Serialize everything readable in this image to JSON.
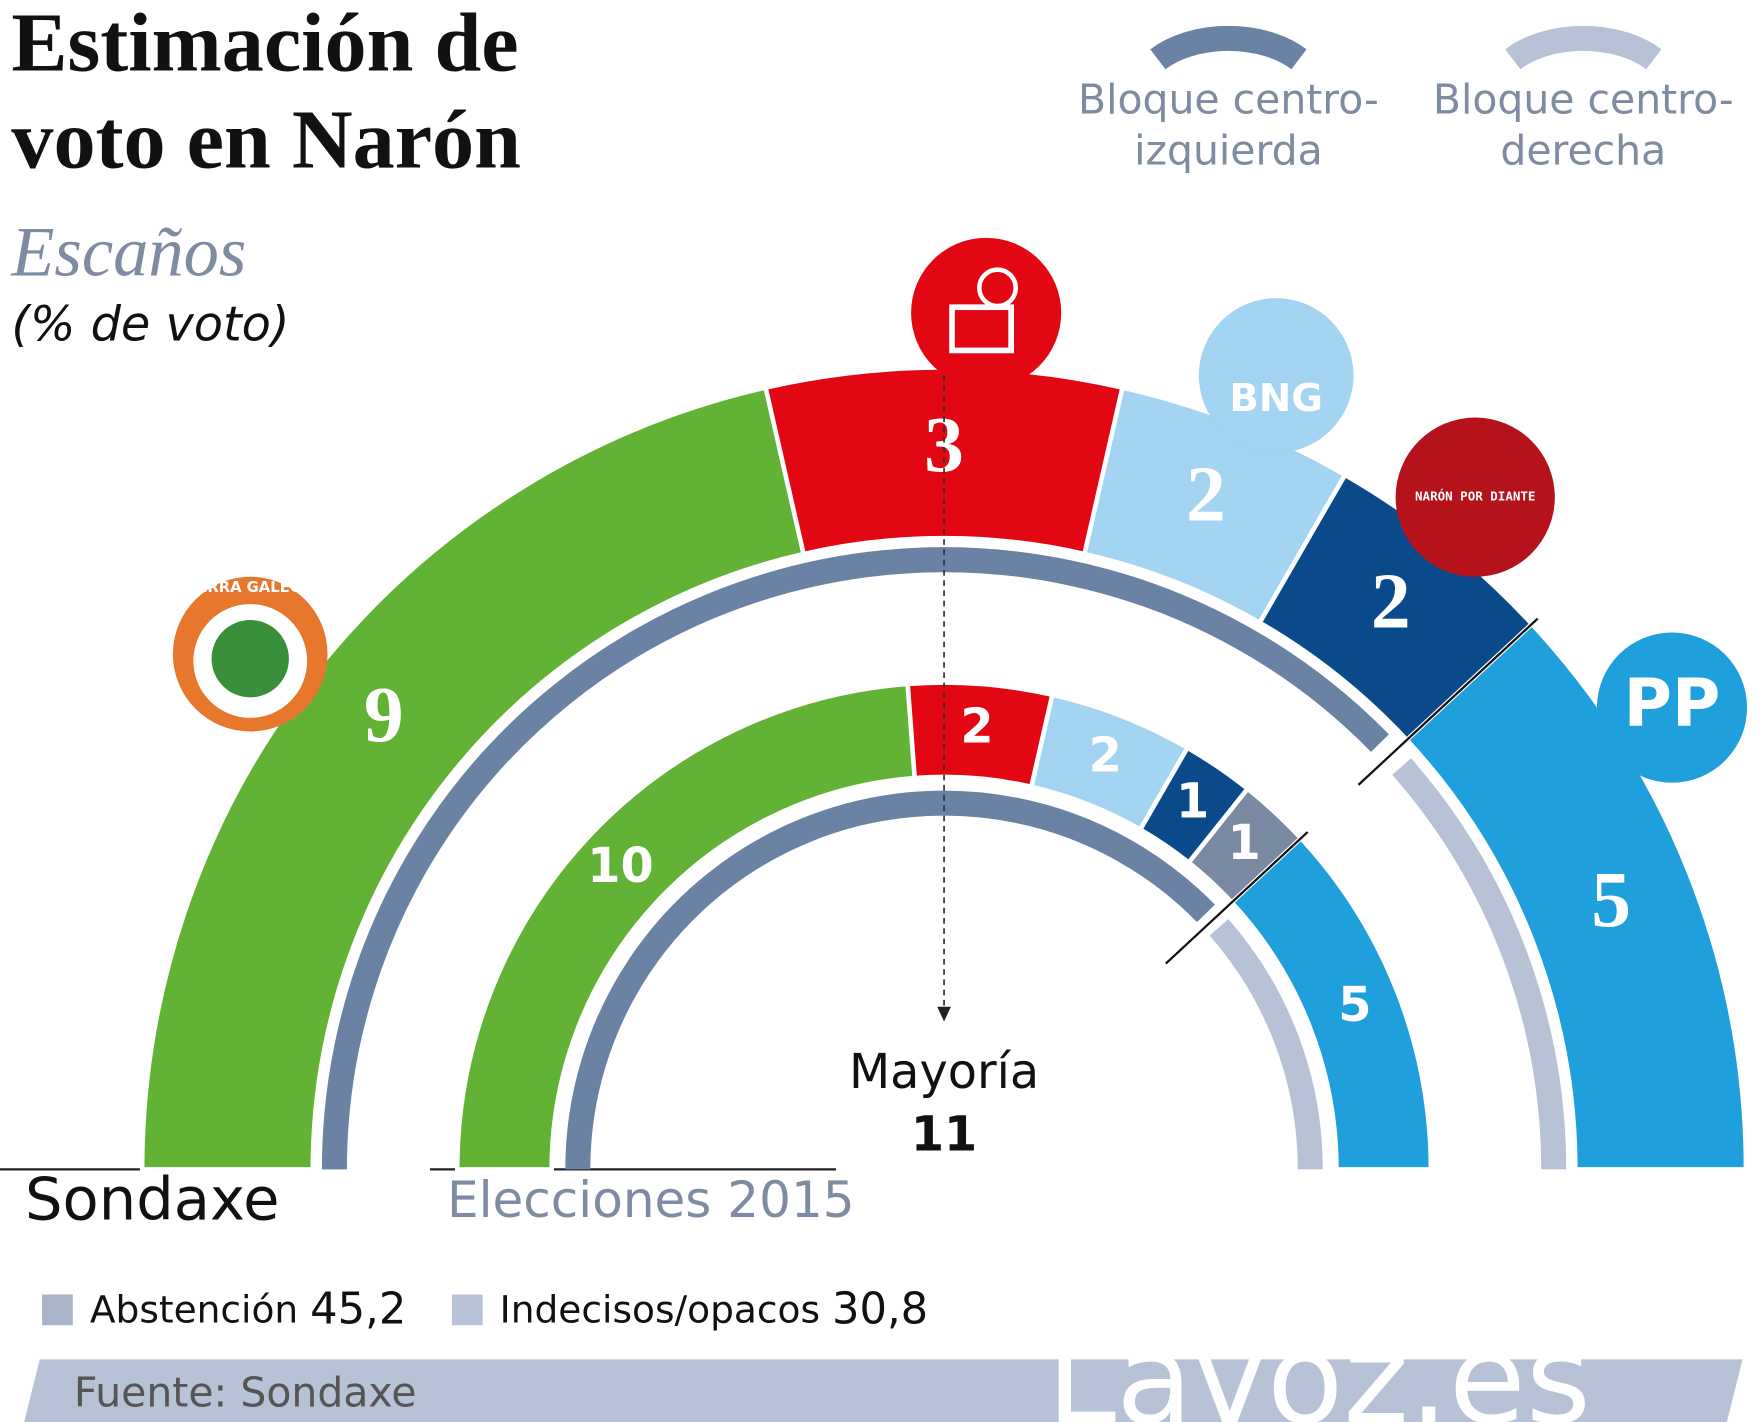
{
  "chart_data": {
    "type": "semicircle",
    "title": [
      "Estimación de",
      "voto en Narón"
    ],
    "subtitle": "Escaños",
    "note": "(% de voto)",
    "categories": [
      "TERRA GALEGA",
      null,
      "BNG",
      "NARÓN POR DIANTE",
      null,
      "PP"
    ],
    "colors": [
      "#62b236",
      "#e30613",
      "#a3d4f2",
      "#0b4a8a",
      "#7b8aa3",
      "#1f9fdc"
    ],
    "bloc": [
      0,
      0,
      0,
      0,
      0,
      1
    ],
    "blocs": [
      {
        "name": [
          "Bloque centro-",
          "izquierda"
        ],
        "color": "#6a82a4"
      },
      {
        "name": [
          "Bloque centro-",
          "derecha"
        ],
        "color": "#b7c2d6"
      }
    ],
    "series": [
      {
        "name": "Sondaxe",
        "values": [
          9,
          3,
          2,
          2,
          null,
          5
        ]
      },
      {
        "name": "Elecciones 2015",
        "values": [
          10,
          2,
          2,
          1,
          1,
          5
        ]
      }
    ],
    "majority": {
      "label": "Mayoría",
      "value": 11
    },
    "stats": [
      {
        "name": "Abstención",
        "value": "45,2"
      },
      {
        "name": "Indecisos/opacos",
        "value": "30,8"
      }
    ],
    "source": "Fuente: Sondaxe",
    "brand": "Lavoz.es"
  }
}
